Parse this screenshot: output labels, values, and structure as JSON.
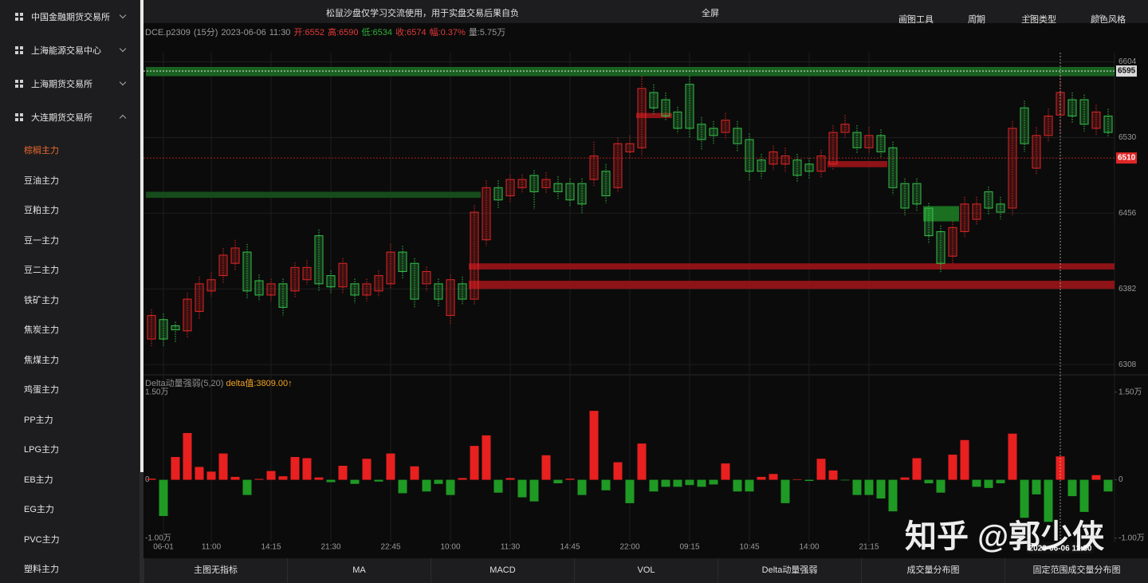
{
  "sidebar": {
    "groups": [
      "中国金融期货交易所",
      "上海能源交易中心",
      "上海期货交易所",
      "大连期货交易所"
    ],
    "expanded": 3,
    "items": [
      "棕榈主力",
      "豆油主力",
      "豆粕主力",
      "豆一主力",
      "豆二主力",
      "铁矿主力",
      "焦炭主力",
      "焦煤主力",
      "鸡蛋主力",
      "PP主力",
      "LPG主力",
      "EB主力",
      "EG主力",
      "PVC主力",
      "塑料主力"
    ],
    "active": 0
  },
  "topbar": {
    "notice": "松鼠沙盘仅学习交流使用，用于实盘交易后果自负",
    "fullscreen": "全屏",
    "menus": [
      "画图工具",
      "周期",
      "主图类型",
      "颜色风格"
    ]
  },
  "tabs": [
    "主图无指标",
    "MA",
    "MACD",
    "VOL",
    "Delta动量强弱",
    "成交量分布图",
    "固定范围成交量分布图"
  ],
  "watermark": "知乎 @郭少侠",
  "chart_data": [
    {
      "type": "candlestick",
      "symbol": "DCE.p2309",
      "period": "(15分)",
      "date": "2023-06-06",
      "time": "11:30",
      "stats": [
        "开:6552",
        "高:6590",
        "低:6534",
        "收:6574",
        "幅:0.37%",
        "量:5.75万"
      ],
      "stat_colors": [
        "#e03a3a",
        "#e03a3a",
        "#2fae3a",
        "#e03a3a",
        "#e03a3a",
        "#9a9a9a"
      ],
      "categories": [
        null,
        "06-01",
        null,
        null,
        null,
        "11:00",
        null,
        null,
        null,
        null,
        "14:15",
        null,
        null,
        null,
        null,
        "21:30",
        null,
        null,
        null,
        null,
        "22:45",
        null,
        null,
        null,
        null,
        "10:00",
        null,
        null,
        null,
        null,
        "11:30",
        null,
        null,
        null,
        null,
        "14:45",
        null,
        null,
        null,
        null,
        "22:00",
        null,
        null,
        null,
        null,
        "09:15",
        null,
        null,
        null,
        null,
        "10:45",
        null,
        null,
        null,
        null,
        "14:00",
        null,
        null,
        null,
        null,
        "21:15",
        null,
        null,
        null,
        null,
        null,
        null,
        null,
        null,
        null,
        null,
        null,
        null,
        null,
        null,
        null,
        null,
        null,
        null,
        null,
        null
      ],
      "open": [
        6333,
        6352,
        6346,
        6341,
        6360,
        6380,
        6395,
        6407,
        6418,
        6390,
        6376,
        6387,
        6380,
        6391,
        6434,
        6395,
        6384,
        6387,
        6376,
        6380,
        6387,
        6418,
        6407,
        6387,
        6387,
        6356,
        6387,
        6372,
        6430,
        6481,
        6473,
        6481,
        6493,
        6481,
        6485,
        6485,
        6485,
        6489,
        6497,
        6481,
        6516,
        6520,
        6574,
        6567,
        6555,
        6582,
        6543,
        6539,
        6535,
        6539,
        6528,
        6508,
        6504,
        6504,
        6508,
        6504,
        6497,
        6504,
        6535,
        6535,
        6520,
        6532,
        6520,
        6485,
        6485,
        6461,
        6438,
        6414,
        6438,
        6450,
        6477,
        6465,
        6461,
        6559,
        6500,
        6532,
        6552,
        6567,
        6567,
        6539,
        6551
      ],
      "high": [
        6362,
        6358,
        6350,
        6378,
        6394,
        6398,
        6422,
        6430,
        6426,
        6396,
        6392,
        6392,
        6408,
        6410,
        6440,
        6400,
        6412,
        6392,
        6392,
        6400,
        6426,
        6424,
        6412,
        6404,
        6392,
        6396,
        6394,
        6464,
        6488,
        6488,
        6494,
        6494,
        6498,
        6496,
        6492,
        6490,
        6490,
        6526,
        6504,
        6530,
        6532,
        6590,
        6582,
        6574,
        6560,
        6590,
        6550,
        6546,
        6554,
        6546,
        6534,
        6514,
        6522,
        6520,
        6514,
        6510,
        6518,
        6542,
        6552,
        6542,
        6540,
        6538,
        6526,
        6490,
        6490,
        6466,
        6444,
        6448,
        6472,
        6472,
        6482,
        6472,
        6546,
        6566,
        6540,
        6558,
        6590,
        6574,
        6572,
        6562,
        6558
      ],
      "low": [
        6326,
        6326,
        6330,
        6334,
        6352,
        6374,
        6388,
        6400,
        6372,
        6370,
        6370,
        6356,
        6374,
        6386,
        6380,
        6378,
        6378,
        6368,
        6370,
        6374,
        6382,
        6392,
        6364,
        6380,
        6364,
        6348,
        6366,
        6366,
        6424,
        6460,
        6466,
        6476,
        6460,
        6476,
        6470,
        6462,
        6456,
        6482,
        6466,
        6476,
        6510,
        6512,
        6552,
        6546,
        6534,
        6530,
        6518,
        6524,
        6528,
        6516,
        6488,
        6490,
        6498,
        6496,
        6486,
        6490,
        6490,
        6498,
        6530,
        6514,
        6514,
        6510,
        6474,
        6454,
        6458,
        6426,
        6398,
        6406,
        6432,
        6444,
        6454,
        6450,
        6454,
        6516,
        6494,
        6526,
        6534,
        6544,
        6536,
        6532,
        6530
      ],
      "close": [
        6356,
        6333,
        6342,
        6372,
        6387,
        6391,
        6415,
        6422,
        6380,
        6376,
        6387,
        6364,
        6403,
        6403,
        6387,
        6384,
        6407,
        6376,
        6387,
        6395,
        6418,
        6399,
        6372,
        6399,
        6372,
        6391,
        6372,
        6457,
        6481,
        6469,
        6489,
        6489,
        6477,
        6489,
        6477,
        6469,
        6465,
        6512,
        6473,
        6524,
        6524,
        6578,
        6559,
        6551,
        6539,
        6539,
        6528,
        6532,
        6547,
        6524,
        6497,
        6497,
        6516,
        6512,
        6493,
        6497,
        6512,
        6535,
        6543,
        6520,
        6532,
        6516,
        6481,
        6461,
        6465,
        6434,
        6407,
        6442,
        6465,
        6465,
        6461,
        6457,
        6539,
        6524,
        6532,
        6551,
        6574,
        6551,
        6543,
        6555,
        6535
      ],
      "up_color": "#e02626",
      "down_color": "#36c24a",
      "ylim": [
        6298,
        6613
      ],
      "yticks": [
        6604,
        6530,
        6456,
        6382,
        6308
      ],
      "grid": true,
      "price_lines": [
        {
          "value": 6595,
          "color": "#ffffff"
        },
        {
          "value": 6510,
          "color": "#e02626"
        }
      ],
      "zones": [
        {
          "low": 6590,
          "high": 6599,
          "from": 0,
          "to": 80,
          "color": "#1c6b24"
        },
        {
          "low": 6471,
          "high": 6477,
          "from": 0,
          "to": 27,
          "color": "#17521d"
        },
        {
          "low": 6401,
          "high": 6407,
          "from": 27,
          "to": 80,
          "color": "#9b1418"
        },
        {
          "low": 6382,
          "high": 6390,
          "from": 27,
          "to": 80,
          "color": "#9b1418"
        },
        {
          "low": 6549,
          "high": 6554,
          "from": 41,
          "to": 43,
          "color": "#9b1418"
        },
        {
          "low": 6501,
          "high": 6507,
          "from": 57,
          "to": 61,
          "color": "#9b1418"
        },
        {
          "low": 6448,
          "high": 6463,
          "from": 65,
          "to": 67,
          "color": "#1c7a24"
        }
      ],
      "crosshair": {
        "index": 76,
        "label": "2023-06-06  11:30"
      }
    },
    {
      "type": "bar",
      "title": "Delta动量强弱(5,20)",
      "readout": "delta值:3809.00↑",
      "values": [
        200,
        -6200,
        3900,
        8000,
        2200,
        1400,
        4500,
        500,
        -2600,
        150,
        1500,
        600,
        3900,
        3700,
        400,
        -400,
        2400,
        -700,
        3600,
        -300,
        4500,
        -2300,
        2300,
        -2000,
        -700,
        -2600,
        300,
        5800,
        7600,
        -2200,
        300,
        -3000,
        -3700,
        4200,
        -600,
        200,
        -2600,
        11800,
        -1800,
        3000,
        -4000,
        6200,
        -2000,
        -1200,
        -1200,
        -900,
        -1200,
        -800,
        2800,
        -2000,
        -2000,
        500,
        1000,
        -4000,
        100,
        -200,
        3600,
        1600,
        -100,
        -2600,
        -2600,
        -3200,
        -5400,
        400,
        3700,
        -600,
        -2200,
        4300,
        6800,
        -1200,
        -1400,
        -600,
        7900,
        -6500,
        -2500,
        -7200,
        4000,
        -2800,
        -5500,
        800,
        -2000
      ],
      "pos_color": "#e8201f",
      "neg_color": "#1f9a24",
      "ylim": [
        -10700,
        15500
      ],
      "yticks": [
        {
          "value": 15000,
          "label": "1.50万"
        },
        0,
        {
          "value": -10000,
          "label": "-1.00万"
        }
      ]
    }
  ]
}
